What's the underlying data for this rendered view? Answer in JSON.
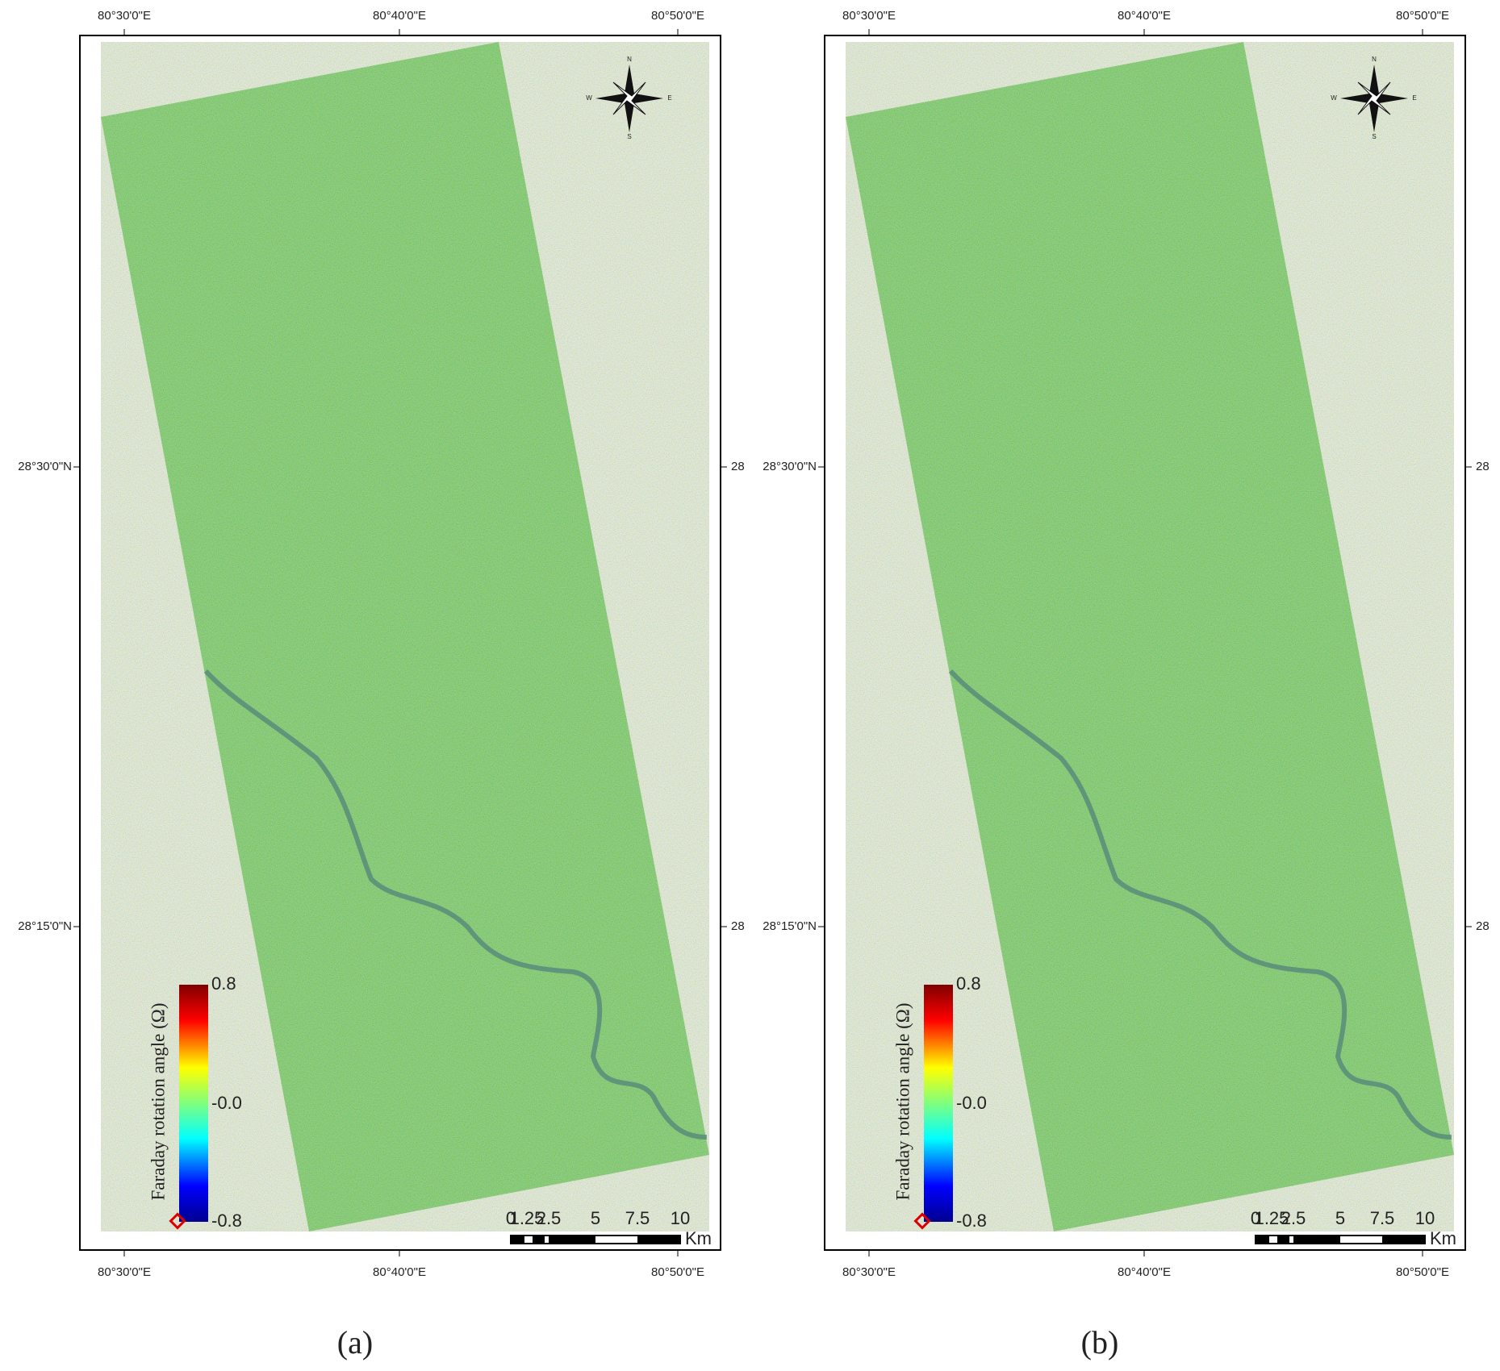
{
  "panels": [
    {
      "caption": "(a)",
      "top_labels": [
        "80°30'0\"E",
        "80°40'0\"E",
        "80°50'0\"E"
      ],
      "bottom_labels": [
        "80°30'0\"E",
        "80°40'0\"E",
        "80°50'0\"E"
      ],
      "left_labels": [
        "28°30'0\"N",
        "28°15'0\"N"
      ],
      "right_labels": [
        "28",
        "28"
      ],
      "colorbar": {
        "title": "Faraday rotation angle (Ω)",
        "labels": [
          "0.8",
          "-0.0",
          "-0.8"
        ]
      },
      "scale_bar": {
        "labels": [
          "0",
          "1.25",
          "2.5",
          "5",
          "7.5",
          "10"
        ],
        "unit": "Km"
      },
      "compass": [
        "N",
        "E",
        "S",
        "W"
      ]
    },
    {
      "caption": "(b)",
      "top_labels": [
        "80°30'0\"E",
        "80°40'0\"E",
        "80°50'0\"E"
      ],
      "bottom_labels": [
        "80°30'0\"E",
        "80°40'0\"E",
        "80°50'0\"E"
      ],
      "left_labels": [
        "28°30'0\"N",
        "28°15'0\"N"
      ],
      "right_labels": [
        "28",
        "28"
      ],
      "colorbar": {
        "title": "Faraday rotation angle (Ω)",
        "labels": [
          "0.8",
          "-0.0",
          "-0.8"
        ]
      },
      "scale_bar": {
        "labels": [
          "0",
          "1.25",
          "2.5",
          "5",
          "7.5",
          "10"
        ],
        "unit": "Km"
      },
      "compass": [
        "N",
        "E",
        "S",
        "W"
      ]
    }
  ]
}
